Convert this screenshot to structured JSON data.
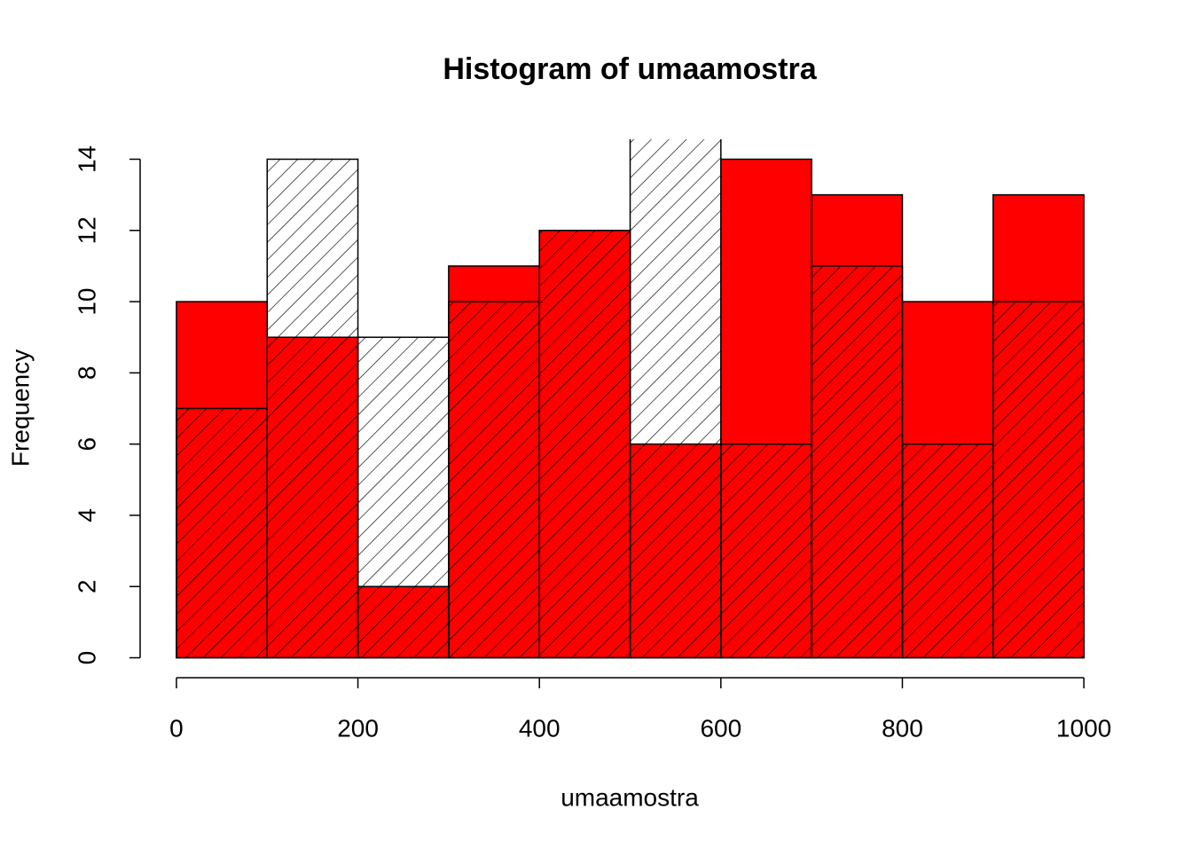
{
  "chart_data": {
    "type": "histogram",
    "title": "Histogram of umaamostra",
    "xlabel": "umaamostra",
    "ylabel": "Frequency",
    "bins": [
      0,
      100,
      200,
      300,
      400,
      500,
      600,
      700,
      800,
      900,
      1000
    ],
    "series": [
      {
        "color": "#ff0000",
        "hatch": false,
        "values": [
          10,
          9,
          2,
          11,
          12,
          6,
          14,
          13,
          10,
          13
        ]
      },
      {
        "color": "#000000",
        "hatch": true,
        "values": [
          7,
          14,
          9,
          10,
          12,
          15,
          6,
          11,
          6,
          10
        ]
      }
    ],
    "xlim": [
      -40,
      1040
    ],
    "ylim": [
      -0.56,
      14.56
    ],
    "xticks": [
      0,
      200,
      400,
      600,
      800,
      1000
    ],
    "yticks": [
      0,
      2,
      4,
      6,
      8,
      10,
      12,
      14
    ]
  }
}
